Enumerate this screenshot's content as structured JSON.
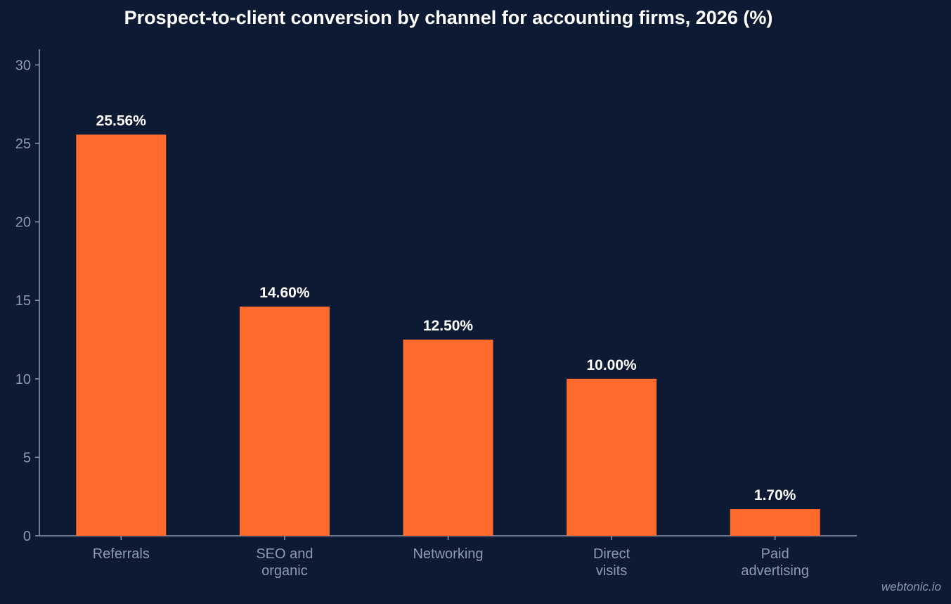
{
  "chart_data": {
    "type": "bar",
    "title": "Prospect-to-client conversion by channel for accounting firms, 2026 (%)",
    "xlabel": "",
    "ylabel": "",
    "categories": [
      [
        "Referrals"
      ],
      [
        "SEO and",
        "organic"
      ],
      [
        "Networking"
      ],
      [
        "Direct",
        "visits"
      ],
      [
        "Paid",
        "advertising"
      ]
    ],
    "values": [
      25.56,
      14.6,
      12.5,
      10.0,
      1.7
    ],
    "data_labels": [
      "25.56%",
      "14.60%",
      "12.50%",
      "10.00%",
      "1.70%"
    ],
    "ylim": [
      0,
      31
    ],
    "yticks": [
      0,
      5,
      10,
      15,
      20,
      25,
      30
    ],
    "grid": false,
    "bar_color": "#ff6b2c",
    "axis_color": "#8d9ab0",
    "background": "#0c1b33"
  },
  "watermark": "webtonic.io"
}
